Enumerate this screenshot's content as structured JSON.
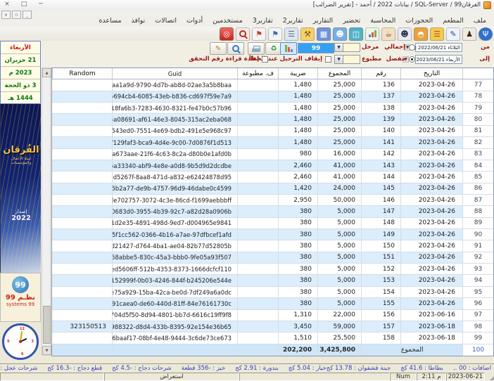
{
  "window": {
    "title": "الفرقان99 / SQL-Server / بيانات 2022 / أحمد - [تقرير الضرائب]"
  },
  "icons": {
    "close": "×",
    "restore": "□",
    "minimize": "─",
    "mdi_close": "×",
    "mdi_restore": "▫",
    "mdi_minimize": "_",
    "dropdown": "▼",
    "calendar": "▦",
    "refresh": "♻",
    "pencil": "✎",
    "scroll_up": "▲",
    "scroll_down": "▼",
    "grip": "◢"
  },
  "menu": {
    "items": [
      "ملف",
      "المطعم",
      "الحجوزات",
      "المحاسبة",
      "تحضير",
      "التقارير",
      "تقارير2",
      "تقارير3",
      "مستخدمين",
      "أدوات",
      "اتصالات",
      "نوافذ",
      "مساعدة"
    ]
  },
  "toolbar": {
    "icons": [
      {
        "name": "power-exit-icon",
        "shape": "glyph",
        "glyph": "◎",
        "fg": "#ffffff",
        "bg": "linear-gradient(#ef6a5e,#c0271c)"
      },
      {
        "name": "search-icon",
        "shape": "mag",
        "fg": "#b03020",
        "bg": "#f7eae8"
      },
      {
        "name": "bookmark-red-icon",
        "shape": "glyph",
        "glyph": "⚑",
        "fg": "#c43a2e",
        "bg": "#f4f4f4"
      },
      {
        "name": "bookmark-blue-icon",
        "shape": "glyph",
        "glyph": "⚑",
        "fg": "#3a66c4",
        "bg": "#f4f4f4"
      },
      {
        "name": "database-icon",
        "shape": "glyph",
        "glyph": "☰",
        "fg": "#5a6a7a",
        "bg": "#dce6f0"
      },
      {
        "name": "toolbox-icon",
        "shape": "glyph",
        "glyph": "⚒",
        "fg": "#7a5210",
        "bg": "#f6d06a"
      },
      {
        "name": "calculator-icon",
        "shape": "glyph",
        "glyph": "▦",
        "fg": "#ffffff",
        "bg": "#6f93d8"
      },
      {
        "name": "users-icon",
        "shape": "glyph",
        "glyph": "☻",
        "fg": "#ffffff",
        "bg": "#75aee6"
      },
      {
        "name": "disks-icon",
        "shape": "glyph",
        "glyph": "◫",
        "fg": "#ffffff",
        "bg": "#52b2c6"
      },
      {
        "name": "chart-icon",
        "shape": "bars",
        "bg": "#eef4ea"
      },
      {
        "name": "restaurant-tables-icon",
        "shape": "glyph",
        "glyph": "☕",
        "fg": "#8a4a2a",
        "bg": "#f2e0c4"
      },
      {
        "name": "waiter-icon",
        "shape": "glyph",
        "glyph": "☻",
        "fg": "#283048",
        "bg": "#e9e9f3"
      },
      {
        "name": "dish-cloche-icon",
        "shape": "glyph",
        "glyph": "◓",
        "fg": "#ffffff",
        "bg": "#eaa23c"
      },
      {
        "name": "burger-icon",
        "shape": "glyph",
        "glyph": "☰",
        "fg": "#9a5a1a",
        "bg": "#f6c84e"
      },
      {
        "name": "memo-icon",
        "shape": "glyph",
        "glyph": "✎",
        "fg": "#2a4a7a",
        "bg": "#eef3fb"
      },
      {
        "name": "presenter-icon",
        "shape": "glyph",
        "glyph": "♟",
        "fg": "#3a2418",
        "bg": "#f0ebe0"
      },
      {
        "name": "cutlery-icon",
        "shape": "glyph",
        "glyph": "Ψ",
        "fg": "#ffffff",
        "bg": "#2f6fd0",
        "round": true
      }
    ]
  },
  "filters": {
    "from_label": "من",
    "from_weekday": "الثلاثاء",
    "from_date": "2022/06/21",
    "to_label": "إلى",
    "to_weekday": "الأربعاء",
    "to_date": "2023/06/21",
    "radio_total": "إجمالي",
    "radio_detailed": "مفصل",
    "posted_label": "مرحل",
    "posted_value": "99",
    "printed_label": "مطبوع",
    "chk_stop_on_error": "إيقاف الترحيل عند الخطأ",
    "chk_reread_check": "إعادة قراءة رقم التحقق"
  },
  "sidebar": {
    "calendar": {
      "weekday": "الأربعاء",
      "gregorian_date": "21 حزيران",
      "gregorian_year": "2023 م",
      "hijri_date": "3 ذو الحجة",
      "hijri_year": "1444 هـ"
    },
    "brand": {
      "name": "الفُرقان",
      "tagline": "لبيئة الأعمال والمؤسسات",
      "release_label": "إصدار",
      "release_year": "2022"
    },
    "systems": {
      "badge": "99",
      "arabic": "نظـم 99",
      "english": "systems 99"
    }
  },
  "table": {
    "headers": {
      "index": "",
      "date": "التاريخ",
      "number": "رقم",
      "total": "المجموع",
      "tax": "ضريبة",
      "printed": "ف. مطبوعة",
      "guid": "Guid",
      "random": "Random"
    },
    "rows": [
      {
        "i": "77",
        "date": "2023-04-26",
        "number": "136",
        "total": "25,000",
        "tax": "1,480",
        "printed": "",
        "guid": "cbaa1a9d-9790-4d7b-ab8d-02ae3a5b8baa",
        "random": ""
      },
      {
        "i": "78",
        "date": "2023-04-26",
        "number": "137",
        "total": "25,000",
        "tax": "1,480",
        "printed": "",
        "guid": "05694cb4-6085-43eb-b836-cd697f59e7a9",
        "random": ""
      },
      {
        "i": "79",
        "date": "2023-04-26",
        "number": "138",
        "total": "25,000",
        "tax": "1,480",
        "printed": "",
        "guid": "a18fa6b3-7283-4630-8321-fe47b0c57b96",
        "random": ""
      },
      {
        "i": "80",
        "date": "2023-04-26",
        "number": "139",
        "total": "25,000",
        "tax": "1,480",
        "printed": "",
        "guid": "35a08691-af61-46e3-8045-315ac2eba068",
        "random": ""
      },
      {
        "i": "81",
        "date": "2023-04-26",
        "number": "140",
        "total": "25,000",
        "tax": "1,480",
        "printed": "",
        "guid": "45543ed0-7551-4e69-bdb2-491e5e968c97",
        "random": ""
      },
      {
        "i": "82",
        "date": "2023-04-26",
        "number": "141",
        "total": "25,000",
        "tax": "1,480",
        "printed": "",
        "guid": "f129faf3-bca9-4d4e-9c00-7d0876f1d513",
        "random": ""
      },
      {
        "i": "83",
        "date": "2023-04-26",
        "number": "142",
        "total": "16,000",
        "tax": "980",
        "printed": "",
        "guid": "4a673aae-21f6-4c63-8c2a-d80b0e1afd0b",
        "random": ""
      },
      {
        "i": "84",
        "date": "2023-04-26",
        "number": "143",
        "total": "41,000",
        "tax": "2,460",
        "printed": "",
        "guid": "c6a33340-abf9-4e8e-a0d8-9b5d9d2dcdbe",
        "random": ""
      },
      {
        "i": "85",
        "date": "2023-04-26",
        "number": "144",
        "total": "41,000",
        "tax": "2,460",
        "printed": "",
        "guid": "66d5267f-8aa8-471d-a832-e62424878d95",
        "random": ""
      },
      {
        "i": "86",
        "date": "2023-04-26",
        "number": "145",
        "total": "24,000",
        "tax": "1,420",
        "printed": "",
        "guid": "395b2a77-de9b-4757-96d9-46dabe0c4599",
        "random": ""
      },
      {
        "i": "87",
        "date": "2023-04-26",
        "number": "146",
        "total": "50,000",
        "tax": "2,950",
        "printed": "",
        "guid": "de702757-3072-4c3e-86cd-f1699aebbbff",
        "random": ""
      },
      {
        "i": "88",
        "date": "2023-04-26",
        "number": "147",
        "total": "5,000",
        "tax": "380",
        "printed": "",
        "guid": "880683d0-3955-4b39-92c7-a82d28a0906b",
        "random": ""
      },
      {
        "i": "89",
        "date": "2023-04-26",
        "number": "148",
        "total": "5,000",
        "tax": "380",
        "printed": "",
        "guid": "e11d2e35-4891-498d-9ed7-d004965e9841",
        "random": ""
      },
      {
        "i": "90",
        "date": "2023-04-26",
        "number": "149",
        "total": "5,000",
        "tax": "380",
        "printed": "",
        "guid": "5f1cc562-0366-4b16-a7ae-97dfbcef1afd",
        "random": ""
      },
      {
        "i": "91",
        "date": "2023-04-26",
        "number": "150",
        "total": "5,000",
        "tax": "380",
        "printed": "",
        "guid": "eed21427-d764-4ba1-ae04-82b77d52805b",
        "random": ""
      },
      {
        "i": "92",
        "date": "2023-04-26",
        "number": "151",
        "total": "5,000",
        "tax": "380",
        "printed": "",
        "guid": "c58abbe5-830c-45a3-bbb0-9fe05a93f507",
        "random": ""
      },
      {
        "i": "93",
        "date": "2023-04-26",
        "number": "152",
        "total": "5,000",
        "tax": "380",
        "printed": "",
        "guid": "ed5606ff-512b-4353-8373-1666dcfcf110",
        "random": ""
      },
      {
        "i": "94",
        "date": "2023-04-26",
        "number": "153",
        "total": "5,000",
        "tax": "380",
        "printed": "",
        "guid": "4152999f-0b03-4246-844f-b245206e544e",
        "random": ""
      },
      {
        "i": "95",
        "date": "2023-04-26",
        "number": "154",
        "total": "5,000",
        "tax": "380",
        "printed": "",
        "guid": "5e75a929-15ba-42ca-be0d-7df249a6a0dc",
        "random": ""
      },
      {
        "i": "96",
        "date": "2023-04-26",
        "number": "155",
        "total": "5,000",
        "tax": "380",
        "printed": "",
        "guid": "191caea0-de60-440d-81ff-84e76161730c",
        "random": ""
      },
      {
        "i": "97",
        "date": "2023-06-16",
        "number": "156",
        "total": "22,000",
        "tax": "1,310",
        "printed": "",
        "guid": "704d5f50-8d94-4801-bb7d-6616c19ff9f8",
        "random": ""
      },
      {
        "i": "98",
        "date": "2023-06-18",
        "number": "157",
        "total": "59,000",
        "tax": "3,450",
        "printed": "",
        "guid": "8e988322-d8d4-433b-8395-92e154e36b65",
        "random": "323150513"
      },
      {
        "i": "99",
        "date": "2023-06-18",
        "number": "158",
        "total": "25,500",
        "tax": "1,510",
        "printed": "",
        "guid": "76baaf17-08bf-4e48-9444-3c6de73ce673",
        "random": ""
      }
    ],
    "totals": {
      "i": "100",
      "label": "المجموع",
      "total": "3,425,800",
      "tax": "202,200"
    }
  },
  "status": {
    "right_items": [
      "اضافات : 00 ..",
      "بطاطا : 41.6 كج",
      "جبنة قشقوان : 13.78 كج"
    ],
    "left_items": [
      "خيار : 5.04 كج",
      "بندورة : 2.91 كج",
      "خبز : -356 قطعة",
      "شرحات دجاج : -4.5 كج",
      "قطع دجاج : -16.3 كج",
      "شرحات عجل : -3"
    ],
    "mode": "استعراض",
    "num_lock": "Num",
    "time": "2:11 م",
    "date": "2023-06-21"
  },
  "colors": {
    "accent_blue": "#35a0f2",
    "row_alt": "#dcedfc",
    "totals_row": "#cfe6f8",
    "status_text": "#3b3bbf",
    "label_maroon": "#9a1515",
    "calendar_red": "#cc1111",
    "calendar_green": "#0a7a0a",
    "brand_navy": "#122470",
    "brand_gold": "#f6c445"
  }
}
